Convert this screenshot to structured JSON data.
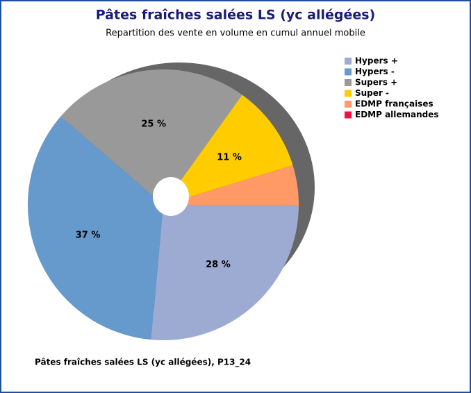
{
  "chart_data": {
    "type": "pie",
    "title": "Pâtes fraîches salées LS (yc allégées)",
    "subtitle": "Repartition des vente en volume en cumul annuel mobile",
    "footnote": "Pâtes fraîches salées LS (yc allégées), P13_24",
    "categories": [
      "Hypers +",
      "Hypers -",
      "Supers +",
      "Super -",
      "EDMP françaises",
      "EDMP allemandes"
    ],
    "values": [
      28,
      37,
      25,
      11,
      5,
      0
    ],
    "value_labels": [
      "28 %",
      "37 %",
      "25 %",
      "11 %",
      null,
      null
    ],
    "colors": [
      "#9dabd3",
      "#6699cc",
      "#999999",
      "#ffcc00",
      "#ff9966",
      "#ee1144"
    ],
    "legend": "right"
  }
}
